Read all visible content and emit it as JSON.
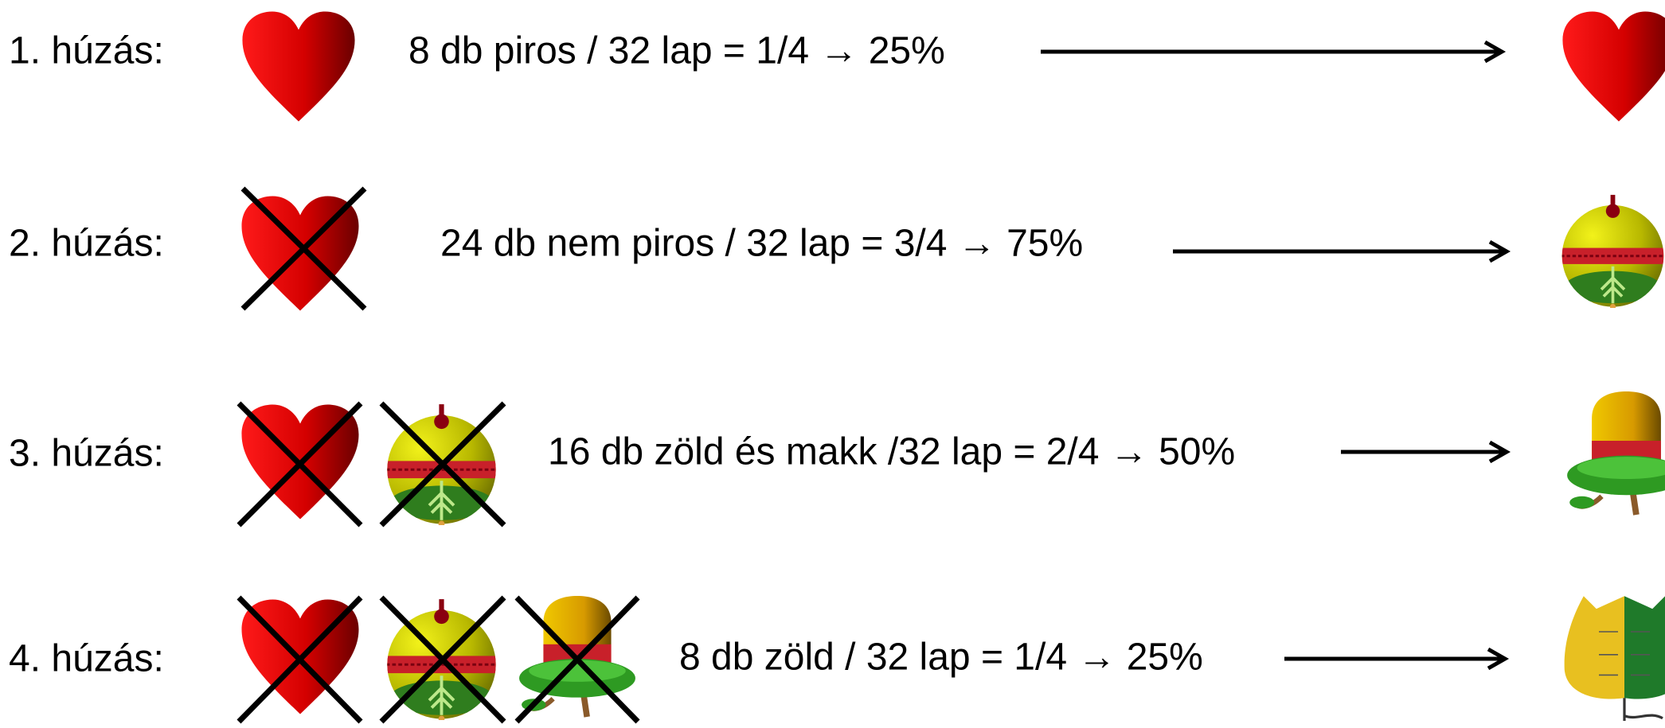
{
  "rows": [
    {
      "label": "1. húzás:",
      "text": "8 db piros / 32 lap = 1/4 → 25%"
    },
    {
      "label": "2. húzás:",
      "text": "24 db nem piros / 32 lap = 3/4 → 75%"
    },
    {
      "label": "3. húzás:",
      "text": "16 db zöld és makk /32 lap = 2/4 → 50%"
    },
    {
      "label": "4. húzás:",
      "text": "8 db zöld / 32 lap = 1/4 → 25%"
    }
  ]
}
